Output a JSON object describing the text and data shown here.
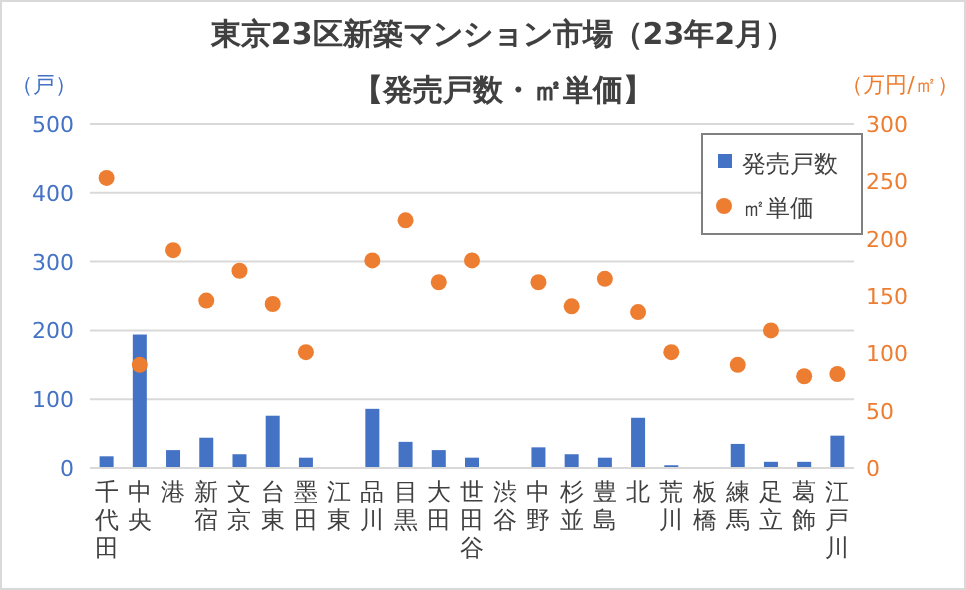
{
  "chart_data": {
    "type": "bar",
    "title": "東京23区新築マンション市場（23年2月）",
    "subtitle": "【発売戸数・㎡単価】",
    "ylabel": "（戸）",
    "y2label": "（万円/㎡）",
    "categories": [
      "千代田",
      "中央",
      "港",
      "新宿",
      "文京",
      "台東",
      "墨田",
      "江東",
      "品川",
      "目黒",
      "大田",
      "世田谷",
      "渋谷",
      "中野",
      "杉並",
      "豊島",
      "北",
      "荒川",
      "板橋",
      "練馬",
      "足立",
      "葛飾",
      "江戸川"
    ],
    "series": [
      {
        "name": "発売戸数",
        "color": "#4472c4",
        "values": [
          17,
          194,
          26,
          44,
          20,
          76,
          15,
          null,
          86,
          38,
          26,
          15,
          null,
          30,
          20,
          15,
          73,
          4,
          null,
          35,
          9,
          9,
          47
        ]
      },
      {
        "name": "㎡単価",
        "type": "scatter",
        "axis": "y2",
        "color": "#ed7d31",
        "values": [
          253,
          90,
          190,
          146,
          172,
          143,
          101,
          null,
          181,
          216,
          162,
          181,
          null,
          162,
          141,
          165,
          136,
          101,
          null,
          90,
          120,
          80,
          82
        ]
      }
    ],
    "ylim": [
      0,
      500
    ],
    "yticks": [
      0,
      100,
      200,
      300,
      400,
      500
    ],
    "y2lim": [
      0,
      300
    ],
    "y2ticks": [
      0,
      50,
      100,
      150,
      200,
      250,
      300
    ],
    "grid": "y",
    "legend": "top right",
    "marker": "circle"
  }
}
